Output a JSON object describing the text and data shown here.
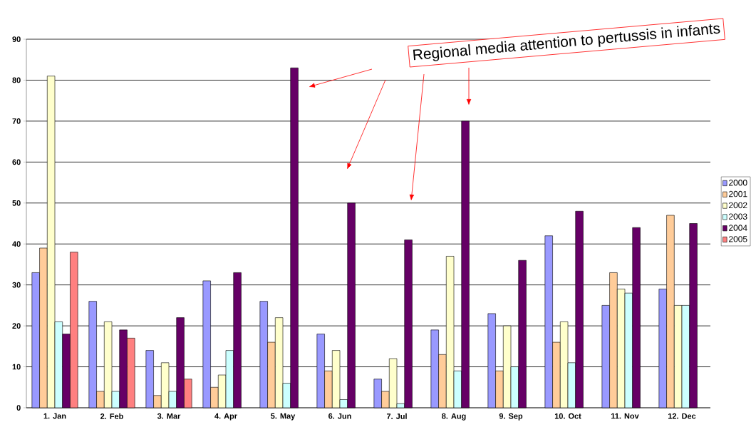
{
  "chart_data": {
    "type": "bar",
    "categories": [
      "1. Jan",
      "2. Feb",
      "3. Mar",
      "4. Apr",
      "5. May",
      "6. Jun",
      "7. Jul",
      "8. Aug",
      "9. Sep",
      "10. Oct",
      "11. Nov",
      "12. Dec"
    ],
    "series": [
      {
        "name": "2000",
        "color": "#9999ff",
        "values": [
          33,
          26,
          14,
          31,
          26,
          18,
          7,
          19,
          23,
          42,
          25,
          29
        ]
      },
      {
        "name": "2001",
        "color": "#ffcc99",
        "values": [
          39,
          4,
          3,
          5,
          16,
          9,
          4,
          13,
          9,
          16,
          33,
          47
        ]
      },
      {
        "name": "2002",
        "color": "#ffffcc",
        "values": [
          81,
          21,
          11,
          8,
          22,
          14,
          12,
          37,
          20,
          21,
          29,
          25
        ]
      },
      {
        "name": "2003",
        "color": "#ccffff",
        "values": [
          21,
          4,
          4,
          14,
          6,
          2,
          1,
          9,
          10,
          11,
          28,
          25
        ]
      },
      {
        "name": "2004",
        "color": "#660066",
        "values": [
          18,
          19,
          22,
          33,
          83,
          50,
          41,
          70,
          36,
          48,
          44,
          45
        ]
      },
      {
        "name": "2005",
        "color": "#ff8080",
        "values": [
          38,
          17,
          7,
          null,
          null,
          null,
          null,
          null,
          null,
          null,
          null,
          null
        ]
      }
    ],
    "ylim": [
      0,
      90
    ],
    "yticks": [
      0,
      10,
      20,
      30,
      40,
      50,
      60,
      70,
      80,
      90
    ],
    "grid": "y",
    "legend": "right",
    "annotations": [
      "Regional media attention to pertussis in infants"
    ]
  }
}
